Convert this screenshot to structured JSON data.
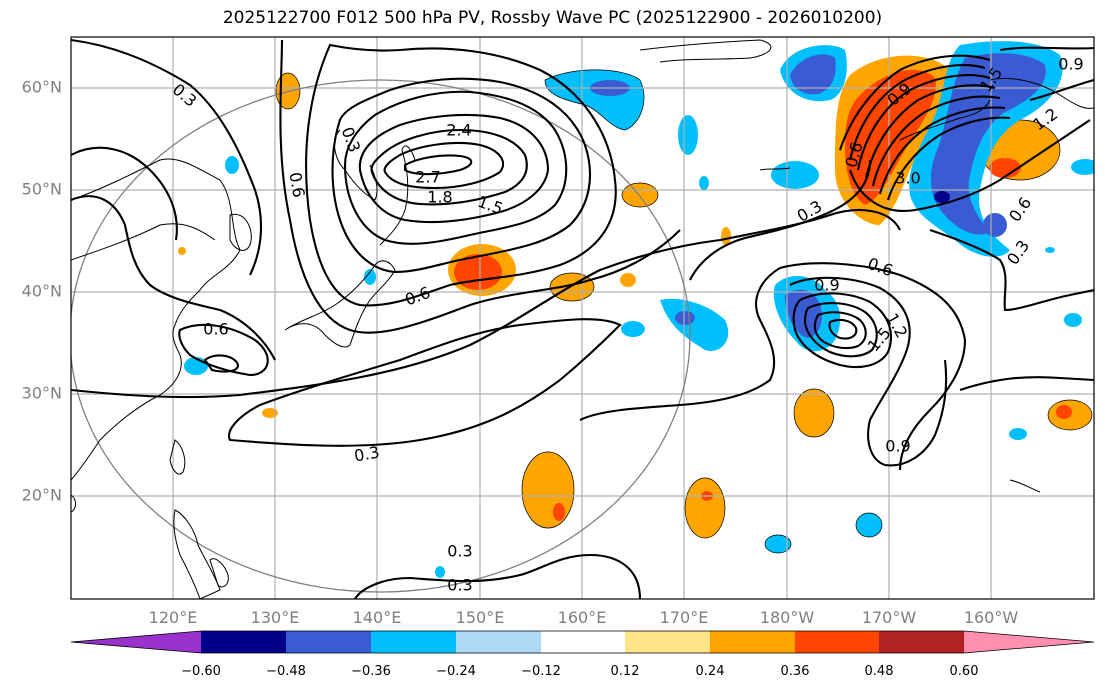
{
  "title": "2025122700 F012 500 hPa PV, Rossby Wave PC (2025122900 - 2026010200)",
  "lat_labels": [
    "60°N",
    "50°N",
    "40°N",
    "30°N",
    "20°N"
  ],
  "lon_labels": [
    "120°E",
    "130°E",
    "140°E",
    "150°E",
    "160°E",
    "170°E",
    "180°W",
    "170°W",
    "160°W"
  ],
  "contour_labels": [
    "0.3",
    "0.6",
    "2.4",
    "2.7",
    "1.8",
    "1.5",
    "0.6",
    "0.6",
    "0.3",
    "0.3",
    "0.3",
    "0.3",
    "0.6",
    "0.9",
    "1.2",
    "1.5",
    "0.9",
    "0.6",
    "0.3",
    "3.0",
    "1.5",
    "0.9",
    "0.6",
    "0.3",
    "0.9",
    "1.2"
  ],
  "colorbar": {
    "ticks": [
      "−0.60",
      "−0.48",
      "−0.36",
      "−0.24",
      "−0.12",
      "0.12",
      "0.24",
      "0.36",
      "0.48",
      "0.60"
    ],
    "colors": [
      "#9932cc",
      "#00008b",
      "#3a5bd1",
      "#00bfff",
      "#add8f6",
      "#ffffff",
      "#ffe48a",
      "#ffa500",
      "#ff4500",
      "#b22222",
      "#ff8fb0"
    ]
  }
}
